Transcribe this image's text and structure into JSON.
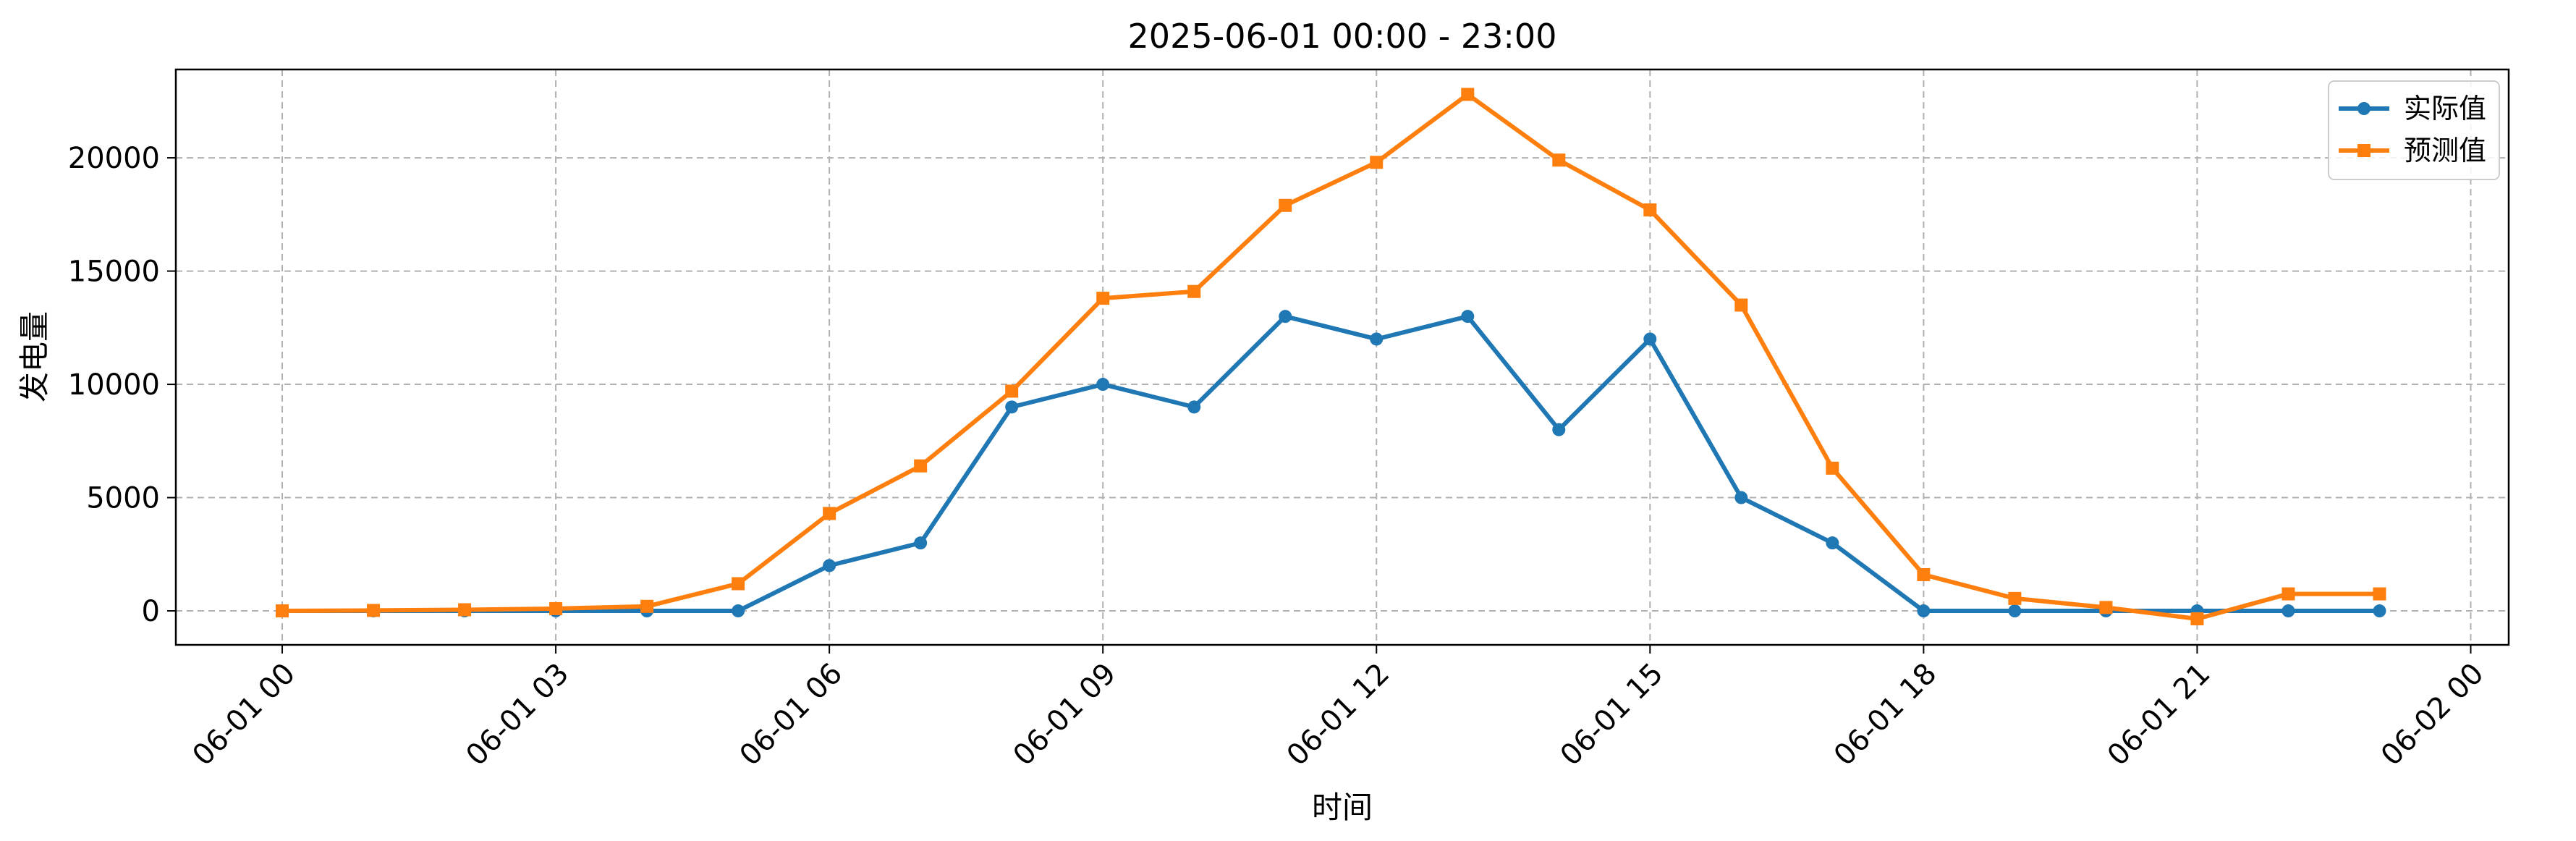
{
  "chart_data": {
    "type": "line",
    "title": "2025-06-01 00:00 - 23:00",
    "xlabel": "时间",
    "ylabel": "发电量",
    "x": [
      "06-01 00",
      "06-01 01",
      "06-01 02",
      "06-01 03",
      "06-01 04",
      "06-01 05",
      "06-01 06",
      "06-01 07",
      "06-01 08",
      "06-01 09",
      "06-01 10",
      "06-01 11",
      "06-01 12",
      "06-01 13",
      "06-01 14",
      "06-01 15",
      "06-01 16",
      "06-01 17",
      "06-01 18",
      "06-01 19",
      "06-01 20",
      "06-01 21",
      "06-01 22",
      "06-01 23"
    ],
    "x_ticks": [
      "06-01 00",
      "06-01 03",
      "06-01 06",
      "06-01 09",
      "06-01 12",
      "06-01 15",
      "06-01 18",
      "06-01 21",
      "06-02 00"
    ],
    "y_ticks": [
      0,
      5000,
      10000,
      15000,
      20000
    ],
    "xlim": [
      "05-31 22:50",
      "06-02 00:25"
    ],
    "ylim": [
      -1500,
      23900
    ],
    "grid": true,
    "legend_position": "top-right",
    "series": [
      {
        "name": "实际值",
        "color": "#1f77b4",
        "marker": "circle",
        "values": [
          0,
          0,
          0,
          0,
          0,
          0,
          2000,
          3000,
          9000,
          10000,
          9000,
          13000,
          12000,
          13000,
          8000,
          12000,
          5000,
          3000,
          0,
          0,
          0,
          0,
          0,
          0
        ]
      },
      {
        "name": "预测值",
        "color": "#ff7f0e",
        "marker": "square",
        "values": [
          0,
          20,
          50,
          100,
          200,
          1200,
          4300,
          6400,
          9700,
          13800,
          14100,
          17900,
          19800,
          22800,
          19900,
          17700,
          13500,
          6300,
          1600,
          550,
          150,
          -350,
          750,
          750
        ]
      }
    ]
  }
}
